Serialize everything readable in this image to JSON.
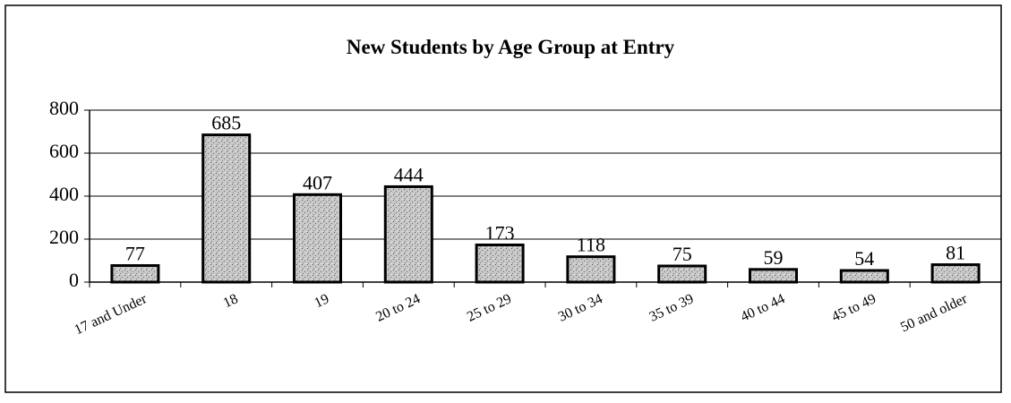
{
  "chart_data": {
    "type": "bar",
    "title": "New Students by Age Group at Entry",
    "categories": [
      "17 and Under",
      "18",
      "19",
      "20 to 24",
      "25 to 29",
      "30 to 34",
      "35 to 39",
      "40 to 44",
      "45 to 49",
      "50 and older"
    ],
    "values": [
      77,
      685,
      407,
      444,
      173,
      118,
      75,
      59,
      54,
      81
    ],
    "color": "#c8c8c8",
    "ylim": [
      0,
      800
    ],
    "yticks": [
      0,
      200,
      400,
      600,
      800
    ],
    "grid": true
  }
}
